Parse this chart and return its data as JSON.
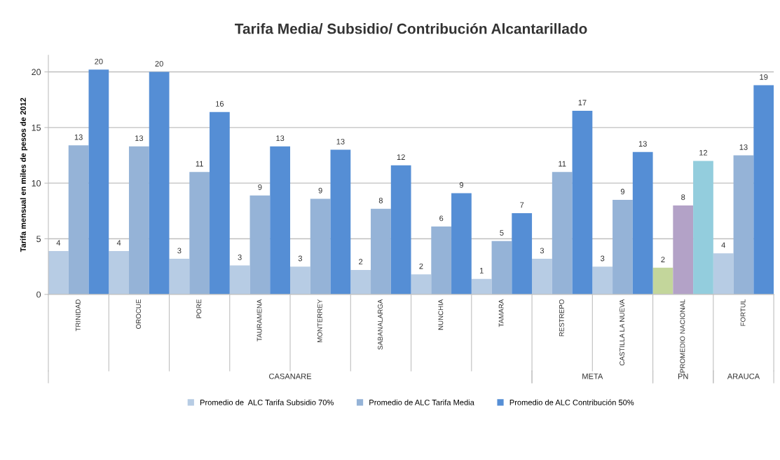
{
  "chart_data": {
    "type": "bar",
    "title": "Tarifa Media/ Subsidio/ Contribución Alcantarillado",
    "ylabel": "Tarifa mensual en miles de pesos de 2012",
    "categories": [
      "TRINIDAD",
      "OROCUE",
      "PORE",
      "TAURAMENA",
      "MONTERREY",
      "SABANALARGA",
      "NUNCHIA",
      "TAMARA",
      "RESTREPO",
      "CASTILLA LA NUEVA",
      "PROMEDIO NACIONAL",
      "FORTUL"
    ],
    "series": [
      {
        "name": "Promedio de  ALC Tarifa Subsidio 70%",
        "color": "#b7cce4",
        "colors": [
          "#b7cce4",
          "#b7cce4",
          "#b7cce4",
          "#b7cce4",
          "#b7cce4",
          "#b7cce4",
          "#b7cce4",
          "#b7cce4",
          "#b7cce4",
          "#b7cce4",
          "#c3d69b",
          "#b7cce4"
        ],
        "values": [
          3.9,
          3.9,
          3.2,
          2.6,
          2.5,
          2.2,
          1.8,
          1.4,
          3.2,
          2.5,
          2.4,
          3.7
        ],
        "value_labels": [
          "4",
          "4",
          "3",
          "3",
          "3",
          "2",
          "2",
          "1",
          "3",
          "3",
          "2",
          "4"
        ]
      },
      {
        "name": "Promedio de ALC Tarifa Media",
        "color": "#95b3d7",
        "colors": [
          "#95b3d7",
          "#95b3d7",
          "#95b3d7",
          "#95b3d7",
          "#95b3d7",
          "#95b3d7",
          "#95b3d7",
          "#95b3d7",
          "#95b3d7",
          "#95b3d7",
          "#b3a2c7",
          "#95b3d7"
        ],
        "values": [
          13.4,
          13.3,
          11.0,
          8.9,
          8.6,
          7.7,
          6.1,
          4.8,
          11.0,
          8.5,
          8.0,
          12.5
        ],
        "value_labels": [
          "13",
          "13",
          "11",
          "9",
          "9",
          "8",
          "6",
          "5",
          "11",
          "9",
          "8",
          "13"
        ]
      },
      {
        "name": "Promedio de ALC Contribución 50%",
        "color": "#558ed5",
        "colors": [
          "#558ed5",
          "#558ed5",
          "#558ed5",
          "#558ed5",
          "#558ed5",
          "#558ed5",
          "#558ed5",
          "#558ed5",
          "#558ed5",
          "#558ed5",
          "#93cddd",
          "#558ed5"
        ],
        "values": [
          20.2,
          20.0,
          16.4,
          13.3,
          13.0,
          11.6,
          9.1,
          7.3,
          16.5,
          12.8,
          12.0,
          18.8
        ],
        "value_labels": [
          "20",
          "20",
          "16",
          "13",
          "13",
          "12",
          "9",
          "7",
          "17",
          "13",
          "12",
          "19"
        ]
      }
    ],
    "annotations": [
      "CASANARE",
      "META",
      "PN",
      "ARAUCA"
    ],
    "ylim": [
      0,
      21.5
    ],
    "yticks": [
      0,
      5,
      10,
      15,
      20
    ],
    "grid": "y",
    "legend": "bottom"
  }
}
